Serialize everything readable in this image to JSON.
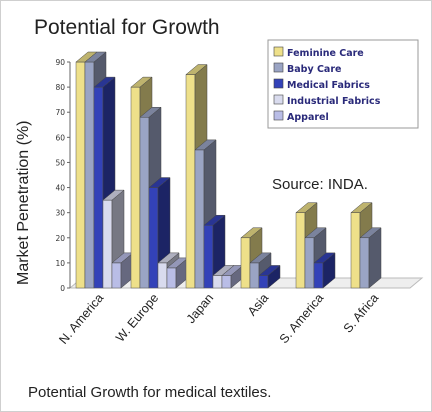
{
  "caption": "Potential Growth for medical textiles.",
  "source_note": "Source: INDA.",
  "chart_data": {
    "type": "bar",
    "title": "Potential for Growth",
    "xlabel": "",
    "ylabel": "Market Penetration (%)",
    "ylim": [
      0,
      90
    ],
    "yticks": [
      0,
      10,
      20,
      30,
      40,
      50,
      60,
      70,
      80,
      90
    ],
    "grid": false,
    "legend_position": "top-right",
    "three_d": true,
    "categories": [
      "N. America",
      "W. Europe",
      "Japan",
      "Asia",
      "S. America",
      "S. Africa"
    ],
    "series": [
      {
        "name": "Feminine Care",
        "color": "#eee08a",
        "values": [
          90,
          80,
          85,
          20,
          30,
          30
        ]
      },
      {
        "name": "Baby Care",
        "color": "#9aa4c4",
        "values": [
          90,
          68,
          55,
          10,
          20,
          20
        ]
      },
      {
        "name": "Medical Fabrics",
        "color": "#3342b8",
        "values": [
          80,
          40,
          25,
          5,
          10,
          0
        ]
      },
      {
        "name": "Industrial Fabrics",
        "color": "#d9dbee",
        "values": [
          35,
          10,
          5,
          0,
          0,
          0
        ]
      },
      {
        "name": "Apparel",
        "color": "#b9bde6",
        "values": [
          10,
          8,
          5,
          0,
          0,
          0
        ]
      }
    ]
  }
}
